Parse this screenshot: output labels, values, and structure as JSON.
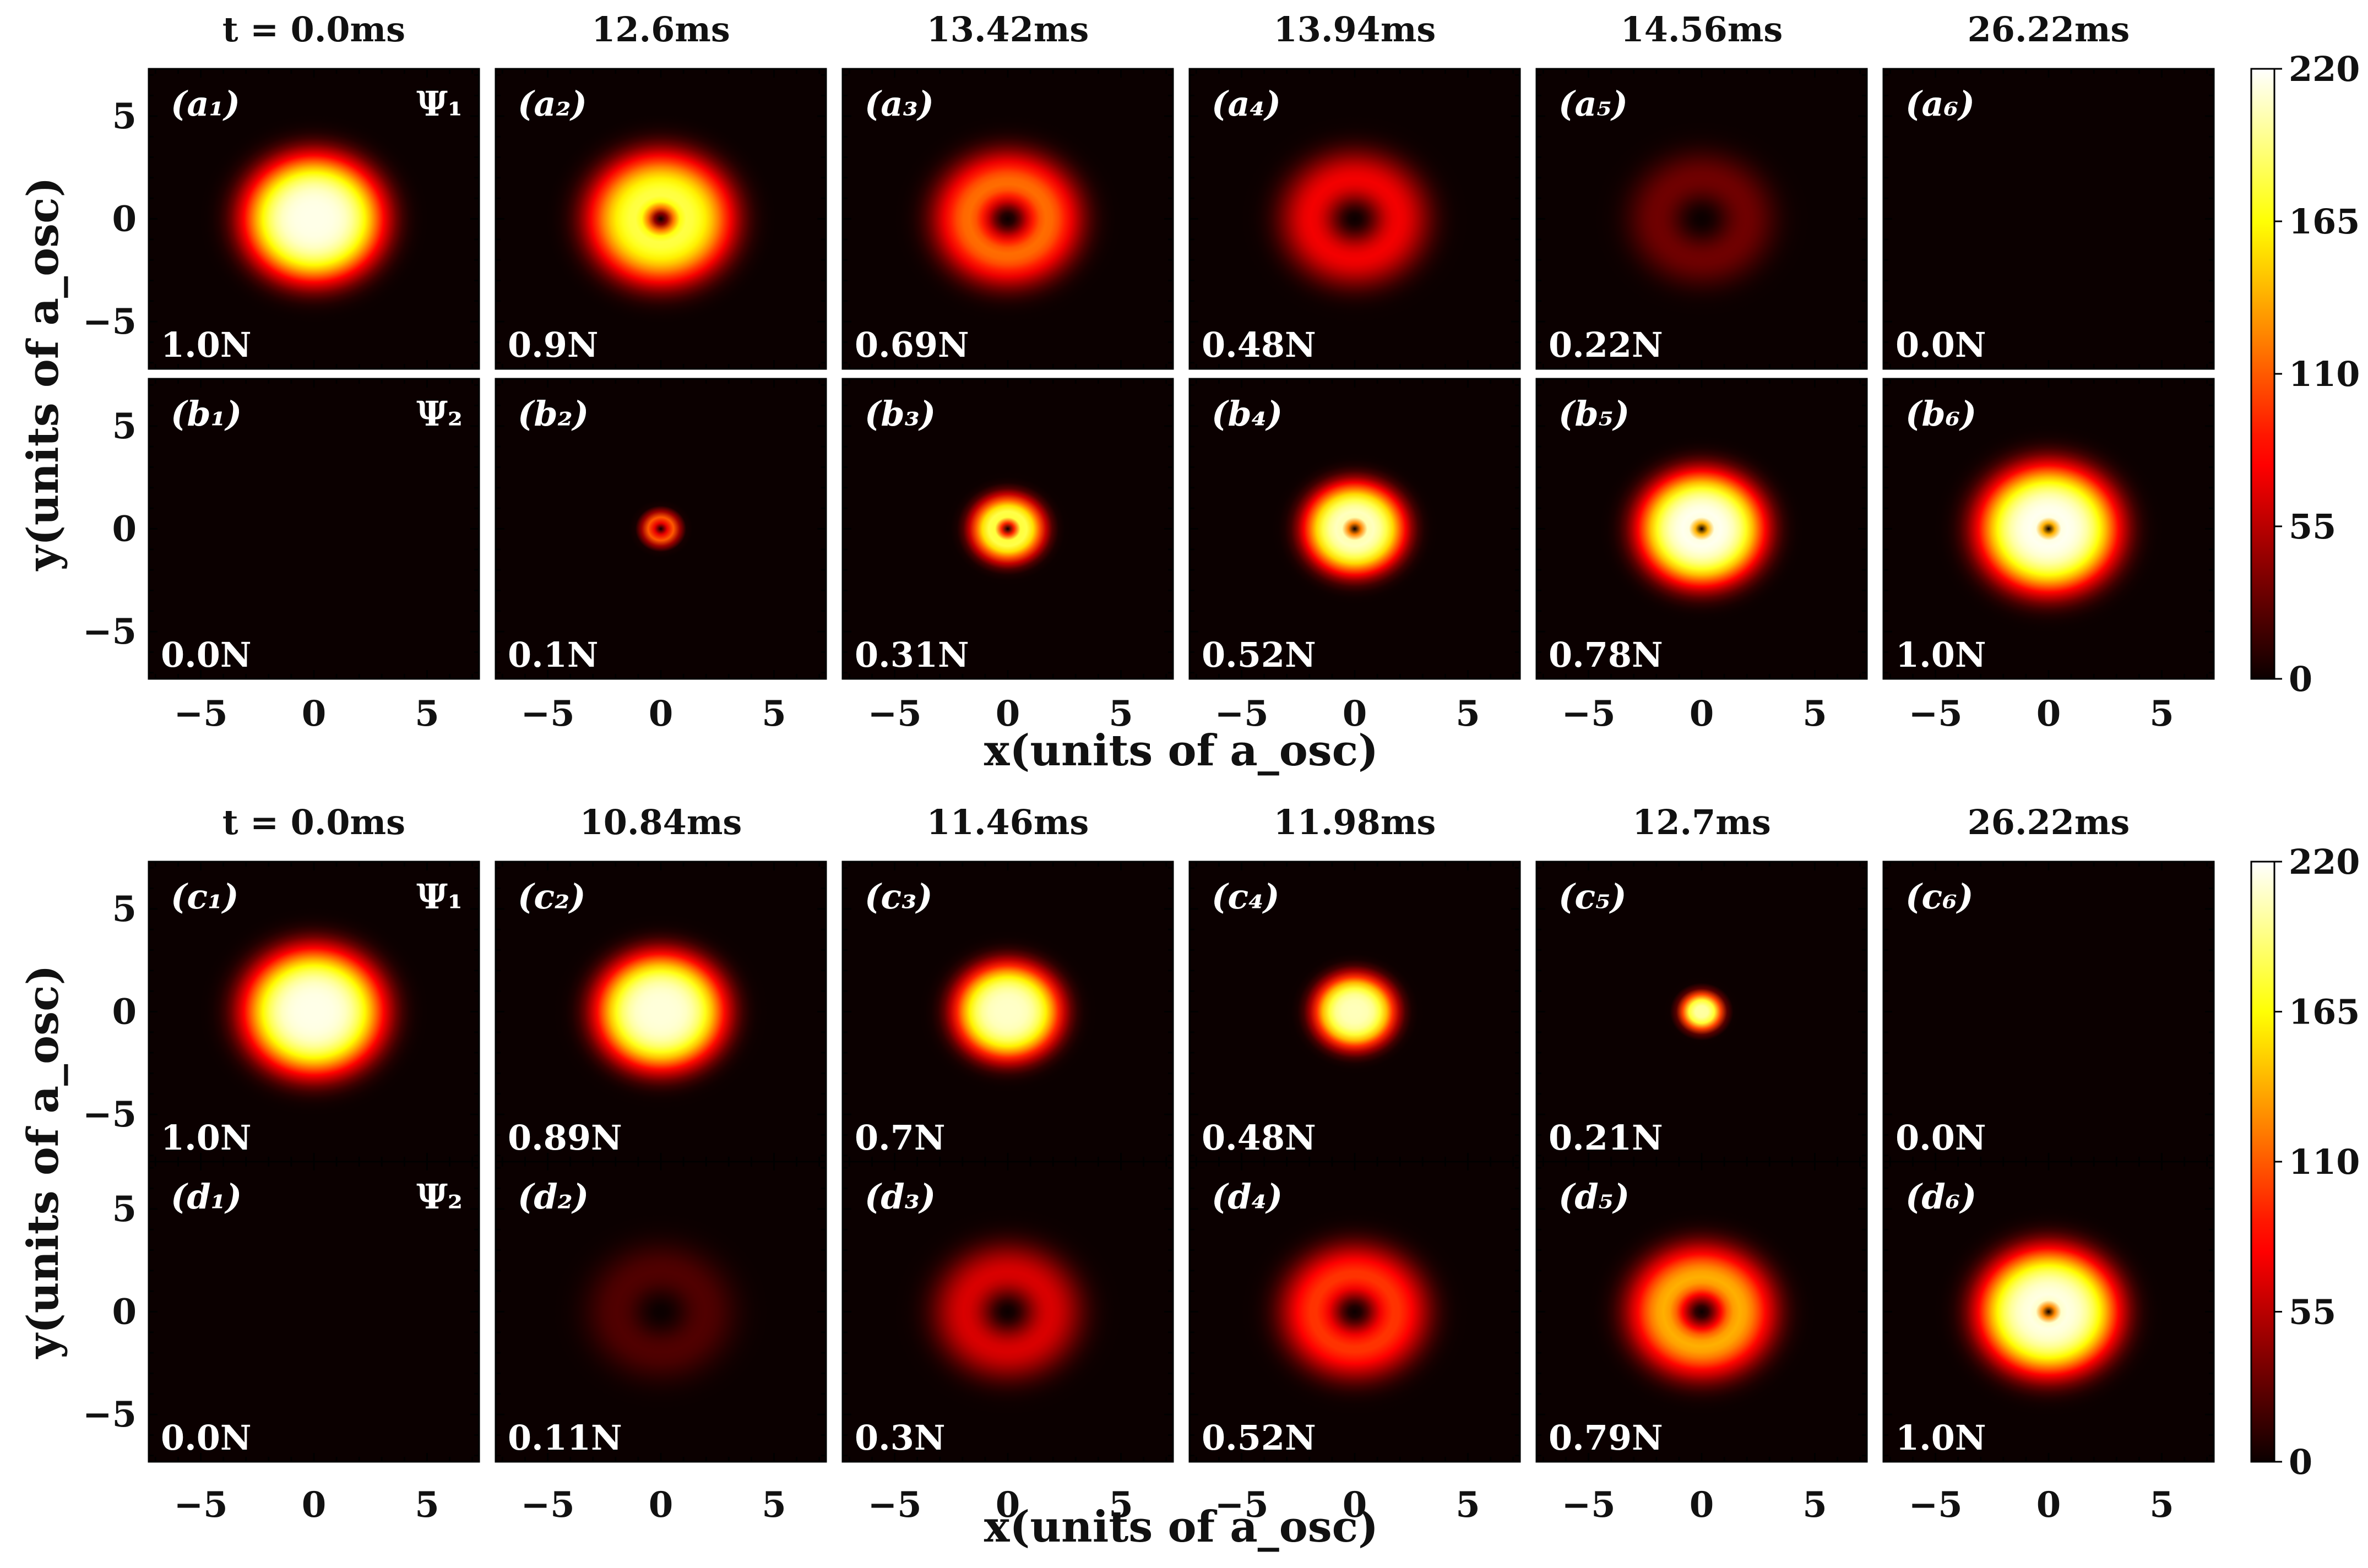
{
  "chart_data": {
    "type": "heatmap",
    "colormap": "hot",
    "colorbar": {
      "min": 0,
      "max": 220,
      "ticks": [
        "0",
        "55",
        "110",
        "165",
        "220"
      ]
    },
    "axes": {
      "xlabel": "x(units of a_osc)",
      "ylabel": "y(units of a_osc)",
      "xlim": [
        -7.3,
        7.3
      ],
      "ylim": [
        -7.3,
        7.3
      ],
      "ticks": [
        "−5",
        "0",
        "5"
      ],
      "tick_values": [
        -5,
        0,
        5
      ]
    },
    "groups": [
      {
        "id": "top",
        "times": [
          "t = 0.0ms",
          "12.6ms",
          "13.42ms",
          "13.94ms",
          "14.56ms",
          "26.22ms"
        ],
        "rows": [
          {
            "component": "Ψ₁",
            "panels": [
              {
                "label": "(a₁)",
                "count": "1.0N",
                "profile": "gaussian",
                "peak": 215,
                "size": 5.0,
                "core": 0
              },
              {
                "label": "(a₂)",
                "count": "0.9N",
                "profile": "vortex",
                "peak": 185,
                "size": 5.1,
                "core": 0.55
              },
              {
                "label": "(a₃)",
                "count": "0.69N",
                "profile": "ring",
                "peak": 140,
                "size": 5.0,
                "core": 1.1
              },
              {
                "label": "(a₄)",
                "count": "0.48N",
                "profile": "ring",
                "peak": 98,
                "size": 5.0,
                "core": 1.35
              },
              {
                "label": "(a₅)",
                "count": "0.22N",
                "profile": "ring",
                "peak": 45,
                "size": 4.9,
                "core": 1.45
              },
              {
                "label": "(a₆)",
                "count": "0.0N",
                "profile": "empty",
                "peak": 0,
                "size": 5.0,
                "core": 0
              }
            ]
          },
          {
            "component": "Ψ₂",
            "panels": [
              {
                "label": "(b₁)",
                "count": "0.0N",
                "profile": "empty",
                "peak": 0,
                "size": 5.0,
                "core": 0
              },
              {
                "label": "(b₂)",
                "count": "0.1N",
                "profile": "vortex",
                "peak": 150,
                "size": 1.3,
                "core": 0.35
              },
              {
                "label": "(b₃)",
                "count": "0.31N",
                "profile": "vortex",
                "peak": 195,
                "size": 2.6,
                "core": 0.35
              },
              {
                "label": "(b₄)",
                "count": "0.52N",
                "profile": "vortex",
                "peak": 210,
                "size": 3.6,
                "core": 0.3
              },
              {
                "label": "(b₅)",
                "count": "0.78N",
                "profile": "vortex",
                "peak": 218,
                "size": 4.5,
                "core": 0.28
              },
              {
                "label": "(b₆)",
                "count": "1.0N",
                "profile": "vortex",
                "peak": 218,
                "size": 5.0,
                "core": 0.28
              }
            ]
          }
        ]
      },
      {
        "id": "bottom",
        "times": [
          "t = 0.0ms",
          "10.84ms",
          "11.46ms",
          "11.98ms",
          "12.7ms",
          "26.22ms"
        ],
        "rows": [
          {
            "component": "Ψ₁",
            "panels": [
              {
                "label": "(c₁)",
                "count": "1.0N",
                "profile": "gaussian",
                "peak": 215,
                "size": 5.0,
                "core": 0
              },
              {
                "label": "(c₂)",
                "count": "0.89N",
                "profile": "gaussian",
                "peak": 212,
                "size": 4.6,
                "core": 0
              },
              {
                "label": "(c₃)",
                "count": "0.7N",
                "profile": "gaussian",
                "peak": 208,
                "size": 3.8,
                "core": 0
              },
              {
                "label": "(c₄)",
                "count": "0.48N",
                "profile": "gaussian",
                "peak": 205,
                "size": 2.9,
                "core": 0
              },
              {
                "label": "(c₅)",
                "count": "0.21N",
                "profile": "gaussian",
                "peak": 200,
                "size": 1.5,
                "core": 0
              },
              {
                "label": "(c₆)",
                "count": "0.0N",
                "profile": "empty",
                "peak": 0,
                "size": 5.0,
                "core": 0
              }
            ]
          },
          {
            "component": "Ψ₂",
            "panels": [
              {
                "label": "(d₁)",
                "count": "0.0N",
                "profile": "empty",
                "peak": 0,
                "size": 5.0,
                "core": 0
              },
              {
                "label": "(d₂)",
                "count": "0.11N",
                "profile": "ring",
                "peak": 30,
                "size": 5.0,
                "core": 1.4
              },
              {
                "label": "(d₃)",
                "count": "0.3N",
                "profile": "ring",
                "peak": 85,
                "size": 5.0,
                "core": 1.3
              },
              {
                "label": "(d₄)",
                "count": "0.52N",
                "profile": "ring",
                "peak": 120,
                "size": 5.0,
                "core": 1.15
              },
              {
                "label": "(d₅)",
                "count": "0.79N",
                "profile": "ring",
                "peak": 160,
                "size": 5.0,
                "core": 1.0
              },
              {
                "label": "(d₆)",
                "count": "1.0N",
                "profile": "vortex",
                "peak": 215,
                "size": 5.0,
                "core": 0.3
              }
            ]
          }
        ]
      }
    ]
  }
}
